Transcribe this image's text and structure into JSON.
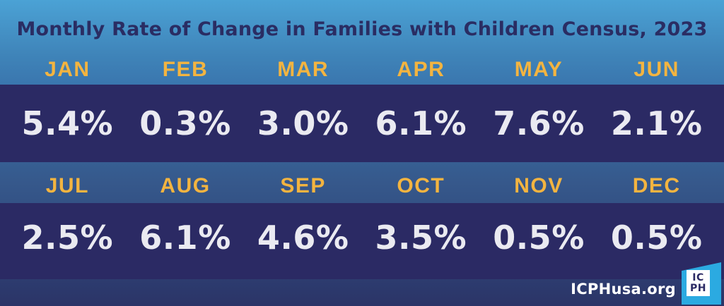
{
  "title": "Monthly Rate of Change in Families with Children Census, 2023",
  "chart_data": {
    "type": "table",
    "title": "Monthly Rate of Change in Families with Children Census, 2023",
    "categories": [
      "JAN",
      "FEB",
      "MAR",
      "APR",
      "MAY",
      "JUN",
      "JUL",
      "AUG",
      "SEP",
      "OCT",
      "NOV",
      "DEC"
    ],
    "values": [
      5.4,
      0.3,
      3.0,
      6.1,
      7.6,
      2.1,
      2.5,
      6.1,
      4.6,
      3.5,
      0.5,
      0.5
    ],
    "unit": "%",
    "layout": "two rows of six months, month labels above percentage values"
  },
  "rows": [
    {
      "months": [
        "JAN",
        "FEB",
        "MAR",
        "APR",
        "MAY",
        "JUN"
      ],
      "values": [
        "5.4%",
        "0.3%",
        "3.0%",
        "6.1%",
        "7.6%",
        "2.1%"
      ]
    },
    {
      "months": [
        "JUL",
        "AUG",
        "SEP",
        "OCT",
        "NOV",
        "DEC"
      ],
      "values": [
        "2.5%",
        "6.1%",
        "4.6%",
        "3.5%",
        "0.5%",
        "0.5%"
      ]
    }
  ],
  "footer": {
    "website": "ICPHusa.org",
    "logo_line1": "IC",
    "logo_line2": "PH"
  },
  "colors": {
    "background_top": "#4BA2D5",
    "background_bottom": "#2B3467",
    "band_navy": "#2B2A64",
    "title_navy": "#2A2D63",
    "month_yellow": "#F3B440",
    "value_offwhite": "#EAEAF1",
    "logo_cyan": "#2BAAE1",
    "logo_plate_white": "#FFFFFF",
    "footer_white": "#FFFFFF"
  }
}
